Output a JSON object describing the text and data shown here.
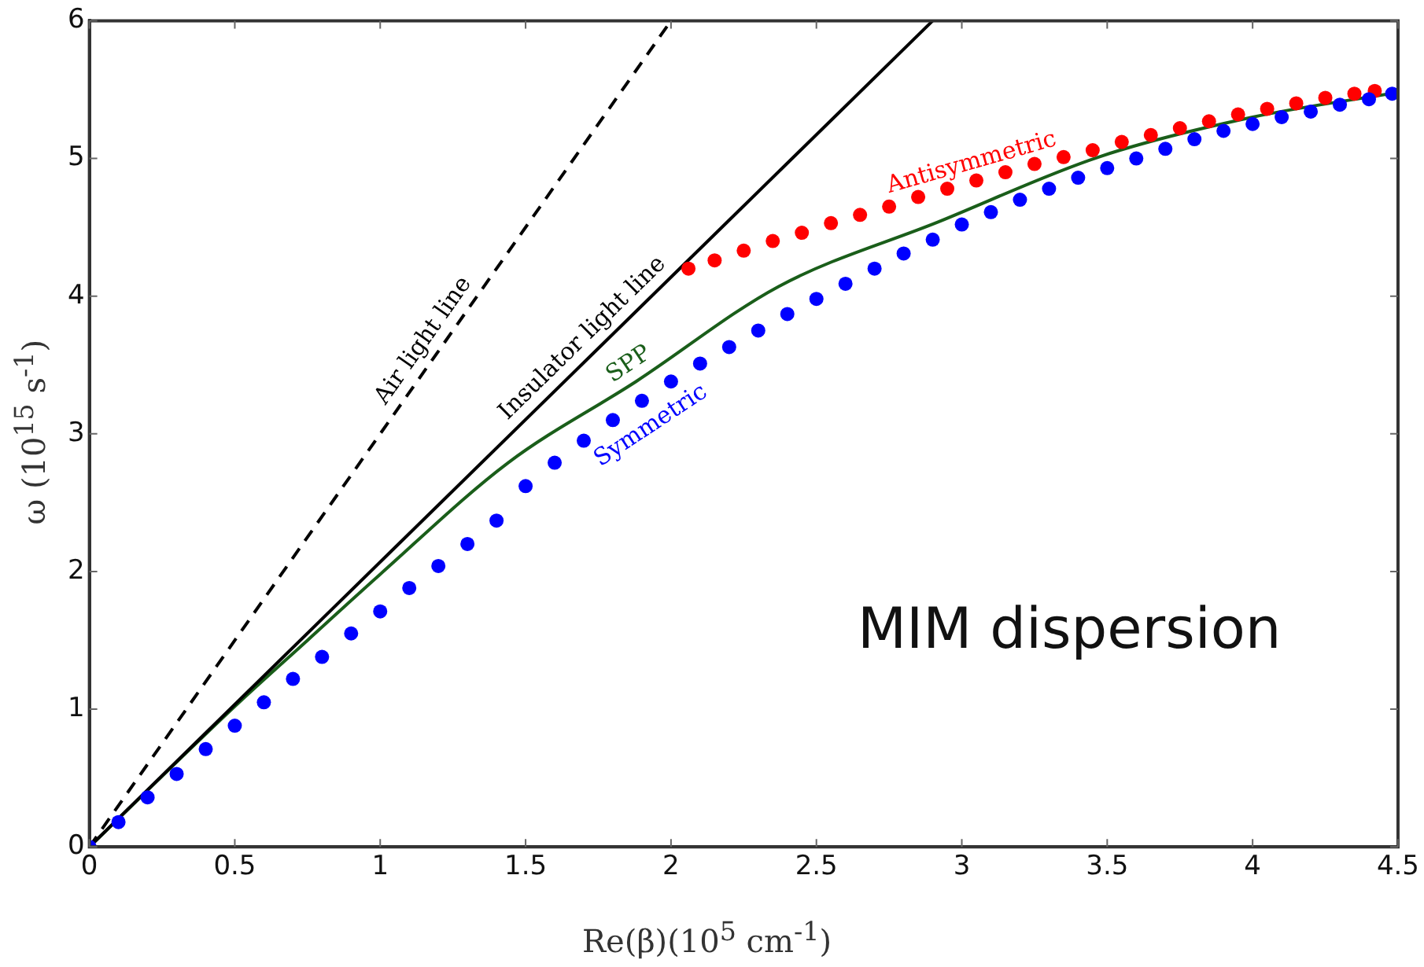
{
  "chart_data": {
    "type": "line",
    "xlabel": "Re(β)(10$^{5}$ cm$^{-1}$)",
    "ylabel": "ω (10$^{15}$ s$^{-1}$)",
    "annotations": [
      "MIM dispersion"
    ],
    "xlim": [
      0,
      4.5
    ],
    "xticks": [
      0,
      0.5,
      1,
      1.5,
      2,
      2.5,
      3,
      3.5,
      4,
      4.5
    ],
    "ylim": [
      0,
      6
    ],
    "yticks": [
      0,
      1,
      2,
      3,
      4,
      5,
      6
    ],
    "grid": false,
    "legend": false,
    "series": [
      {
        "name": "Air light line",
        "color": "#000000",
        "line_style": "dashed",
        "marker": "none",
        "x": [
          0,
          2
        ],
        "values": [
          0,
          6
        ]
      },
      {
        "name": "Insulator light line",
        "color": "#000000",
        "line_style": "solid",
        "marker": "none",
        "x": [
          0,
          2.9
        ],
        "values": [
          0,
          6
        ]
      },
      {
        "name": "SPP",
        "color": "#1a5e1a",
        "line_style": "solid",
        "marker": "none",
        "x": [
          0,
          0.5,
          0.75,
          1,
          1.44,
          1.88,
          2.37,
          2.92,
          3.47,
          4,
          4.5
        ],
        "values": [
          0,
          1.02,
          1.5,
          1.98,
          2.79,
          3.38,
          4.07,
          4.54,
          5.01,
          5.3,
          5.48
        ]
      },
      {
        "name": "Symmetric",
        "color": "#0000ff",
        "type": "scatter",
        "marker": "circle",
        "x": [
          0,
          0.1,
          0.2,
          0.3,
          0.4,
          0.5,
          0.6,
          0.7,
          0.8,
          0.9,
          1,
          1.1,
          1.2,
          1.3,
          1.4,
          1.5,
          1.6,
          1.7,
          1.8,
          1.9,
          2,
          2.1,
          2.2,
          2.3,
          2.4,
          2.5,
          2.6,
          2.7,
          2.8,
          2.9,
          3,
          3.1,
          3.2,
          3.3,
          3.4,
          3.5,
          3.6,
          3.7,
          3.8,
          3.9,
          4,
          4.1,
          4.2,
          4.3,
          4.4,
          4.48
        ],
        "values": [
          0,
          0.18,
          0.36,
          0.53,
          0.71,
          0.88,
          1.05,
          1.22,
          1.38,
          1.55,
          1.71,
          1.88,
          2.04,
          2.2,
          2.37,
          2.62,
          2.79,
          2.95,
          3.1,
          3.24,
          3.38,
          3.51,
          3.63,
          3.75,
          3.87,
          3.98,
          4.09,
          4.2,
          4.31,
          4.41,
          4.52,
          4.61,
          4.7,
          4.78,
          4.86,
          4.93,
          5.0,
          5.07,
          5.14,
          5.2,
          5.25,
          5.3,
          5.34,
          5.39,
          5.43,
          5.47
        ]
      },
      {
        "name": "Antisymmetric",
        "color": "#ff0000",
        "type": "scatter",
        "marker": "circle",
        "x": [
          2.06,
          2.15,
          2.25,
          2.35,
          2.45,
          2.55,
          2.65,
          2.75,
          2.85,
          2.95,
          3.05,
          3.15,
          3.25,
          3.35,
          3.45,
          3.55,
          3.65,
          3.75,
          3.85,
          3.95,
          4.05,
          4.15,
          4.25,
          4.35,
          4.42
        ],
        "values": [
          4.2,
          4.26,
          4.33,
          4.4,
          4.46,
          4.53,
          4.59,
          4.65,
          4.72,
          4.78,
          4.84,
          4.9,
          4.96,
          5.01,
          5.06,
          5.12,
          5.17,
          5.22,
          5.27,
          5.32,
          5.36,
          5.4,
          5.44,
          5.47,
          5.49
        ]
      }
    ]
  }
}
